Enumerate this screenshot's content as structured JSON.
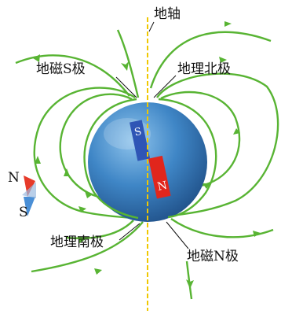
{
  "labels": {
    "axis": "地轴",
    "geomagnetic_south": "地磁S极",
    "geographic_north": "地理北极",
    "geographic_south": "地理南极",
    "geomagnetic_north": "地磁N极"
  },
  "bar_magnet": {
    "north": "N",
    "south": "S"
  },
  "compass": {
    "north": "N",
    "south": "S"
  },
  "colors": {
    "field_line": "#58b433",
    "earth_light": "#8fc4ec",
    "earth_mid": "#3f86c6",
    "earth_dark": "#1f4f87",
    "axis_line": "#f0c800",
    "magnet_north": "#e1261c",
    "magnet_south": "#2f55b5",
    "pointer_red": "#e63a2a",
    "pointer_blue": "#4a8fd6"
  }
}
